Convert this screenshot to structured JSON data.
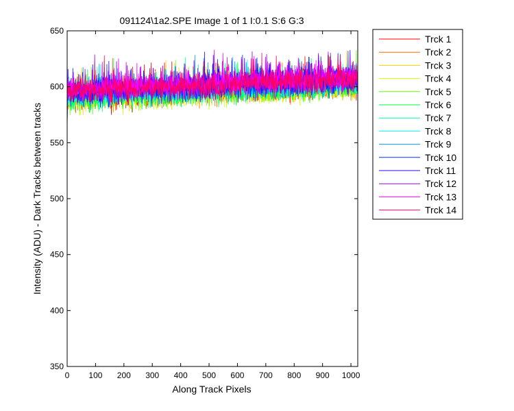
{
  "chart_data": {
    "type": "line",
    "title": "091124\\1a2.SPE  Image 1 of 1  I:0.1  S:6  G:3",
    "xlabel": "Along Track Pixels",
    "ylabel": "Intensity (ADU) - Dark Tracks between tracks",
    "xlim": [
      0,
      1024
    ],
    "ylim": [
      350,
      650
    ],
    "xticks": [
      0,
      100,
      200,
      300,
      400,
      500,
      600,
      700,
      800,
      900,
      1000
    ],
    "yticks": [
      350,
      400,
      450,
      500,
      550,
      600,
      650
    ],
    "grid": false,
    "legend_position": "outside-top-right",
    "series_points_per_track": 1024,
    "series": [
      {
        "name": "Trck 1",
        "color": "#ff0000",
        "start": 592,
        "end": 603
      },
      {
        "name": "Trck 2",
        "color": "#ff6600",
        "start": 591,
        "end": 602
      },
      {
        "name": "Trck 3",
        "color": "#ffcc00",
        "start": 590,
        "end": 602
      },
      {
        "name": "Trck 4",
        "color": "#ccff00",
        "start": 589,
        "end": 601
      },
      {
        "name": "Trck 5",
        "color": "#66ff00",
        "start": 590,
        "end": 602
      },
      {
        "name": "Trck 6",
        "color": "#00ff33",
        "start": 591,
        "end": 603
      },
      {
        "name": "Trck 7",
        "color": "#00ff99",
        "start": 592,
        "end": 604
      },
      {
        "name": "Trck 8",
        "color": "#00ffff",
        "start": 593,
        "end": 605
      },
      {
        "name": "Trck 9",
        "color": "#0099ff",
        "start": 594,
        "end": 605
      },
      {
        "name": "Trck 10",
        "color": "#0033ff",
        "start": 595,
        "end": 606
      },
      {
        "name": "Trck 11",
        "color": "#3300ff",
        "start": 596,
        "end": 608
      },
      {
        "name": "Trck 12",
        "color": "#9900ff",
        "start": 597,
        "end": 609
      },
      {
        "name": "Trck 13",
        "color": "#ff00ff",
        "start": 598,
        "end": 609
      },
      {
        "name": "Trck 14",
        "color": "#ff0066",
        "start": 596,
        "end": 607
      }
    ]
  }
}
